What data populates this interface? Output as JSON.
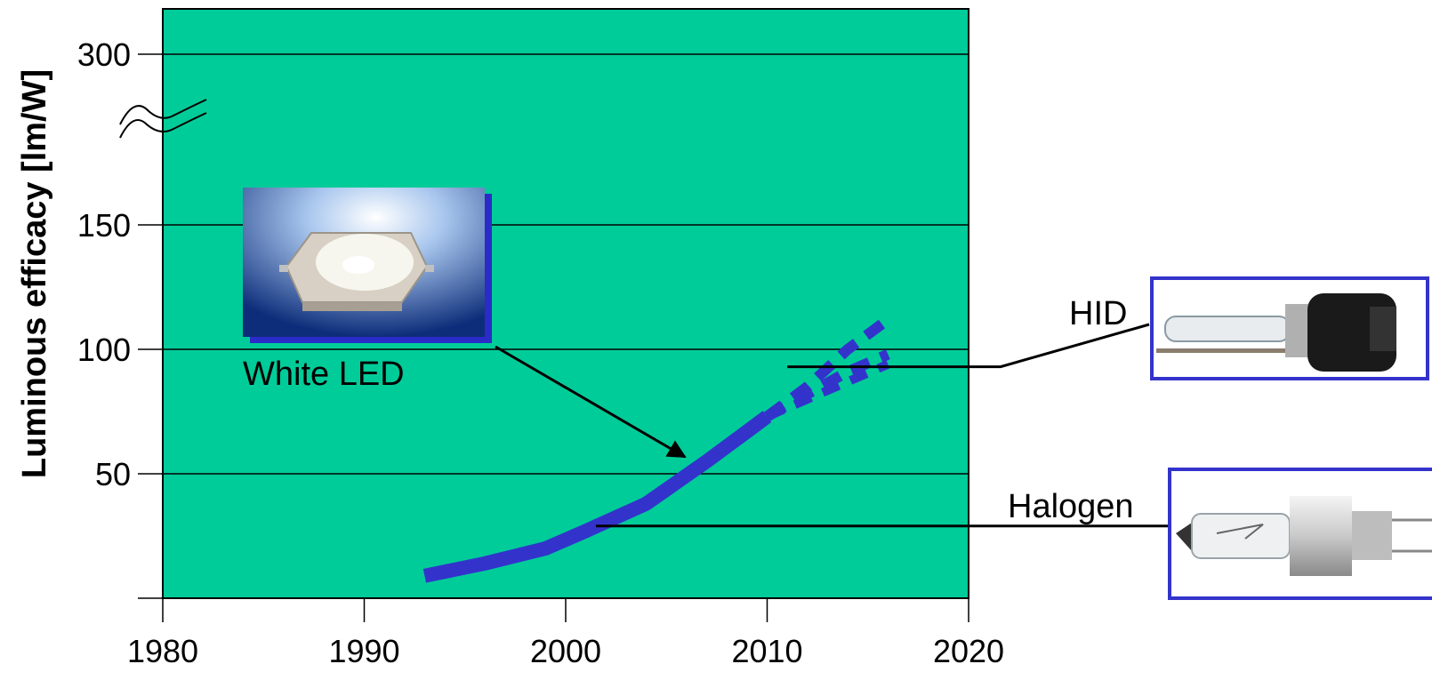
{
  "chart_data": {
    "type": "line",
    "title": "",
    "xlabel": "",
    "ylabel": "Luminous efficacy [lm/W]",
    "x_ticks": [
      "1980",
      "1990",
      "2000",
      "2010",
      "2020"
    ],
    "y_ticks": [
      "50",
      "100",
      "150",
      "300"
    ],
    "xlim": [
      1980,
      2020
    ],
    "ylim": [
      0,
      300
    ],
    "axis_break": "between 150 and 300",
    "grid": true,
    "background_color": "#00CC99",
    "series_color": "#3333CC",
    "series": [
      {
        "name": "White LED",
        "x": [
          1993,
          1996,
          1999,
          2001,
          2004,
          2007,
          2009,
          2010
        ],
        "y": [
          9,
          14,
          20,
          27,
          38,
          55,
          67,
          73
        ]
      }
    ],
    "projections": {
      "style": "dashed",
      "x": [
        2010,
        2012,
        2014,
        2016
      ],
      "upper": [
        73,
        85,
        100,
        112
      ],
      "middle": [
        73,
        82,
        91,
        98
      ],
      "lower": [
        73,
        80,
        87,
        94
      ]
    },
    "reference_lines": [
      {
        "label": "HID",
        "y": 93,
        "x_start": 2011
      },
      {
        "label": "Halogen",
        "y": 29,
        "x_start": 2001.5
      }
    ],
    "annotations": [
      {
        "label": "White LED",
        "target_x": 2006.5,
        "target_y": 57
      }
    ]
  }
}
